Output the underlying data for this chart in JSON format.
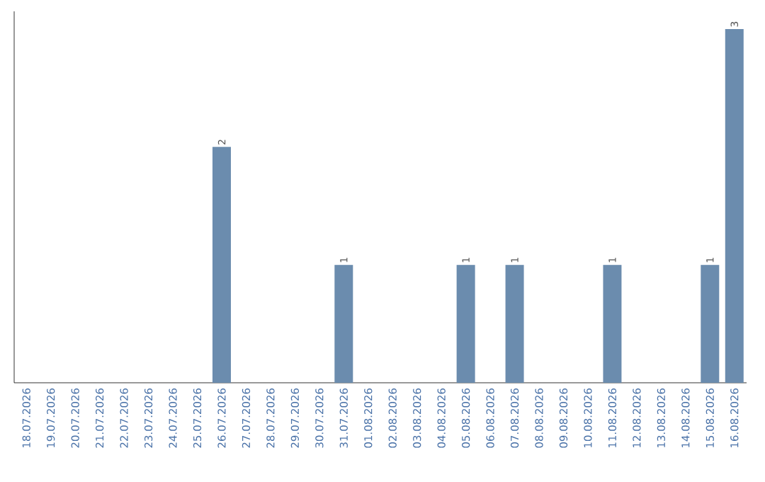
{
  "chart_data": {
    "type": "bar",
    "categories": [
      "18.07.2026",
      "19.07.2026",
      "20.07.2026",
      "21.07.2026",
      "22.07.2026",
      "23.07.2026",
      "24.07.2026",
      "25.07.2026",
      "26.07.2026",
      "27.07.2026",
      "28.07.2026",
      "29.07.2026",
      "30.07.2026",
      "31.07.2026",
      "01.08.2026",
      "02.08.2026",
      "03.08.2026",
      "04.08.2026",
      "05.08.2026",
      "06.08.2026",
      "07.08.2026",
      "08.08.2026",
      "09.08.2026",
      "10.08.2026",
      "11.08.2026",
      "12.08.2026",
      "13.08.2026",
      "14.08.2026",
      "15.08.2026",
      "16.08.2026"
    ],
    "values": [
      0,
      0,
      0,
      0,
      0,
      0,
      0,
      0,
      2,
      0,
      0,
      0,
      0,
      1,
      0,
      0,
      0,
      0,
      1,
      0,
      1,
      0,
      0,
      0,
      1,
      0,
      0,
      0,
      1,
      3
    ],
    "value_labels": [
      null,
      null,
      null,
      null,
      null,
      null,
      null,
      null,
      "2",
      null,
      null,
      null,
      null,
      "1",
      null,
      null,
      null,
      null,
      "1",
      null,
      "1",
      null,
      null,
      null,
      "1",
      null,
      null,
      null,
      "1",
      "3"
    ],
    "color": "#6b8cae"
  }
}
